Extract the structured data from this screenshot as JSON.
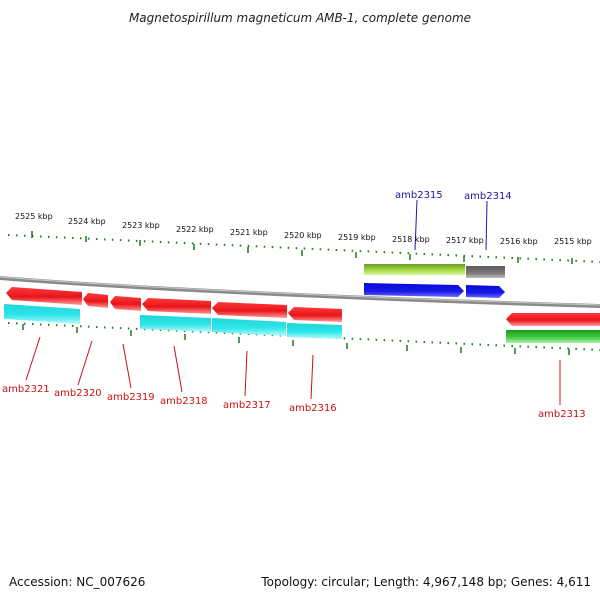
{
  "title": "Magnetospirillum magneticum AMB-1, complete genome",
  "footer": {
    "accession": "Accession: NC_007626",
    "topology": "Topology: circular; Length: 4,967,148 bp; Genes: 4,611"
  },
  "scale_labels": [
    "2525 kbp",
    "2524 kbp",
    "2523 kbp",
    "2522 kbp",
    "2521 kbp",
    "2520 kbp",
    "2519 kbp",
    "2518 kbp",
    "2517 kbp",
    "2516 kbp",
    "2515 kbp"
  ],
  "genes": [
    {
      "name": "amb2321",
      "strand": "minus"
    },
    {
      "name": "amb2320",
      "strand": "minus"
    },
    {
      "name": "amb2319",
      "strand": "minus"
    },
    {
      "name": "amb2318",
      "strand": "minus"
    },
    {
      "name": "amb2317",
      "strand": "minus"
    },
    {
      "name": "amb2316",
      "strand": "minus"
    },
    {
      "name": "amb2315",
      "strand": "plus"
    },
    {
      "name": "amb2314",
      "strand": "plus"
    },
    {
      "name": "amb2313",
      "strand": "minus"
    }
  ],
  "colors": {
    "minus_gene": "#e8141a",
    "minus_cds": "#2ee6ea",
    "plus_gene": "#1a1ae6",
    "plus_cds_green": "#7fbf2a",
    "plus_cds_gray": "#6f6f6f",
    "ruler": "#1a7a1a",
    "backbone": "#8a8a8a"
  }
}
